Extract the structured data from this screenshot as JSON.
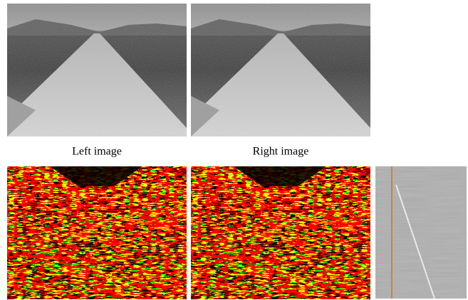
{
  "captions": {
    "left": "Left image",
    "right": "Right image"
  }
}
